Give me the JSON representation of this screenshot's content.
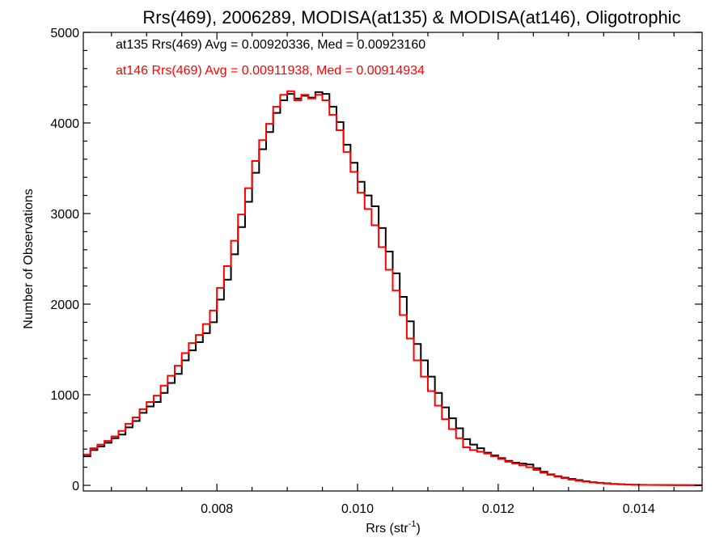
{
  "chart_data": {
    "type": "line",
    "title": "Rrs(469), 2006289, MODISA(at135) & MODISA(at146), Oligotrophic",
    "xlabel_main": "Rrs (str",
    "xlabel_sup": "-1",
    "xlabel_close": ")",
    "ylabel": "Number of Observations",
    "xlim": [
      0.0061,
      0.0149
    ],
    "ylim": [
      0,
      5000
    ],
    "xticks": [
      0.008,
      0.01,
      0.012,
      0.014
    ],
    "xtick_labels": [
      "0.008",
      "0.010",
      "0.012",
      "0.014"
    ],
    "yticks": [
      0,
      1000,
      2000,
      3000,
      4000,
      5000
    ],
    "ytick_labels": [
      "0",
      "1000",
      "2000",
      "3000",
      "4000",
      "5000"
    ],
    "grid": false,
    "annotations": [
      {
        "text": "at135 Rrs(469) Avg = 0.00920336, Med = 0.00923160",
        "color": "#000000"
      },
      {
        "text": "at146 Rrs(469) Avg = 0.00911938, Med = 0.00914934",
        "color": "#ff0000"
      }
    ],
    "series": [
      {
        "color": "#000000",
        "x": [
          0.0061,
          0.0062,
          0.0063,
          0.0064,
          0.0065,
          0.0066,
          0.0067,
          0.0068,
          0.0069,
          0.007,
          0.0071,
          0.0072,
          0.0073,
          0.0074,
          0.0075,
          0.0076,
          0.0077,
          0.0078,
          0.0079,
          0.008,
          0.0081,
          0.0082,
          0.0083,
          0.0084,
          0.0085,
          0.0086,
          0.0087,
          0.0088,
          0.0089,
          0.009,
          0.0091,
          0.0092,
          0.0093,
          0.0094,
          0.0095,
          0.0096,
          0.0097,
          0.0098,
          0.0099,
          0.01,
          0.0101,
          0.0102,
          0.0103,
          0.0104,
          0.0105,
          0.0106,
          0.0107,
          0.0108,
          0.0109,
          0.011,
          0.0111,
          0.0112,
          0.0113,
          0.0114,
          0.0115,
          0.0116,
          0.0117,
          0.0118,
          0.0119,
          0.012,
          0.0121,
          0.0122,
          0.0123,
          0.0124,
          0.0125,
          0.0126,
          0.0127,
          0.0128,
          0.0129,
          0.013,
          0.0131,
          0.0132,
          0.0133,
          0.0134,
          0.0135,
          0.0136,
          0.0137,
          0.0138,
          0.0139,
          0.014,
          0.0141,
          0.0142,
          0.0143,
          0.0144,
          0.0145,
          0.0146,
          0.0147,
          0.0148,
          0.0149
        ],
        "y": [
          320,
          390,
          430,
          470,
          520,
          560,
          640,
          710,
          800,
          870,
          920,
          1020,
          1130,
          1230,
          1380,
          1490,
          1580,
          1680,
          1800,
          2050,
          2270,
          2550,
          2850,
          3130,
          3450,
          3710,
          3900,
          4110,
          4250,
          4320,
          4270,
          4300,
          4280,
          4340,
          4320,
          4180,
          4010,
          3760,
          3560,
          3350,
          3200,
          3080,
          2840,
          2580,
          2340,
          2080,
          1810,
          1560,
          1380,
          1200,
          1020,
          860,
          740,
          630,
          510,
          450,
          410,
          360,
          330,
          300,
          270,
          250,
          240,
          230,
          190,
          150,
          120,
          100,
          85,
          70,
          58,
          45,
          35,
          28,
          22,
          16,
          12,
          9,
          7,
          6,
          5,
          4,
          3,
          3,
          2,
          2,
          2,
          1,
          1
        ]
      },
      {
        "color": "#ff0000",
        "x": [
          0.0061,
          0.0062,
          0.0063,
          0.0064,
          0.0065,
          0.0066,
          0.0067,
          0.0068,
          0.0069,
          0.007,
          0.0071,
          0.0072,
          0.0073,
          0.0074,
          0.0075,
          0.0076,
          0.0077,
          0.0078,
          0.0079,
          0.008,
          0.0081,
          0.0082,
          0.0083,
          0.0084,
          0.0085,
          0.0086,
          0.0087,
          0.0088,
          0.0089,
          0.009,
          0.0091,
          0.0092,
          0.0093,
          0.0094,
          0.0095,
          0.0096,
          0.0097,
          0.0098,
          0.0099,
          0.01,
          0.0101,
          0.0102,
          0.0103,
          0.0104,
          0.0105,
          0.0106,
          0.0107,
          0.0108,
          0.0109,
          0.011,
          0.0111,
          0.0112,
          0.0113,
          0.0114,
          0.0115,
          0.0116,
          0.0117,
          0.0118,
          0.0119,
          0.012,
          0.0121,
          0.0122,
          0.0123,
          0.0124,
          0.0125,
          0.0126,
          0.0127,
          0.0128,
          0.0129,
          0.013,
          0.0131,
          0.0132,
          0.0133,
          0.0134,
          0.0135,
          0.0136,
          0.0137,
          0.0138,
          0.0139,
          0.014,
          0.0141,
          0.0142,
          0.0143,
          0.0144,
          0.0145,
          0.0146,
          0.0147,
          0.0148,
          0.0149
        ],
        "y": [
          340,
          410,
          450,
          490,
          540,
          600,
          680,
          750,
          840,
          920,
          990,
          1100,
          1210,
          1320,
          1460,
          1570,
          1660,
          1780,
          1930,
          2180,
          2420,
          2700,
          2990,
          3280,
          3580,
          3810,
          3990,
          4180,
          4310,
          4350,
          4250,
          4310,
          4270,
          4310,
          4250,
          4090,
          3920,
          3680,
          3460,
          3230,
          3050,
          2870,
          2630,
          2380,
          2150,
          1880,
          1620,
          1380,
          1200,
          1040,
          880,
          730,
          620,
          520,
          420,
          390,
          370,
          350,
          320,
          290,
          260,
          240,
          220,
          200,
          170,
          140,
          115,
          95,
          78,
          63,
          50,
          40,
          32,
          25,
          19,
          14,
          11,
          8,
          6,
          5,
          4,
          3,
          3,
          2,
          2,
          2,
          1,
          1,
          1
        ]
      }
    ]
  }
}
